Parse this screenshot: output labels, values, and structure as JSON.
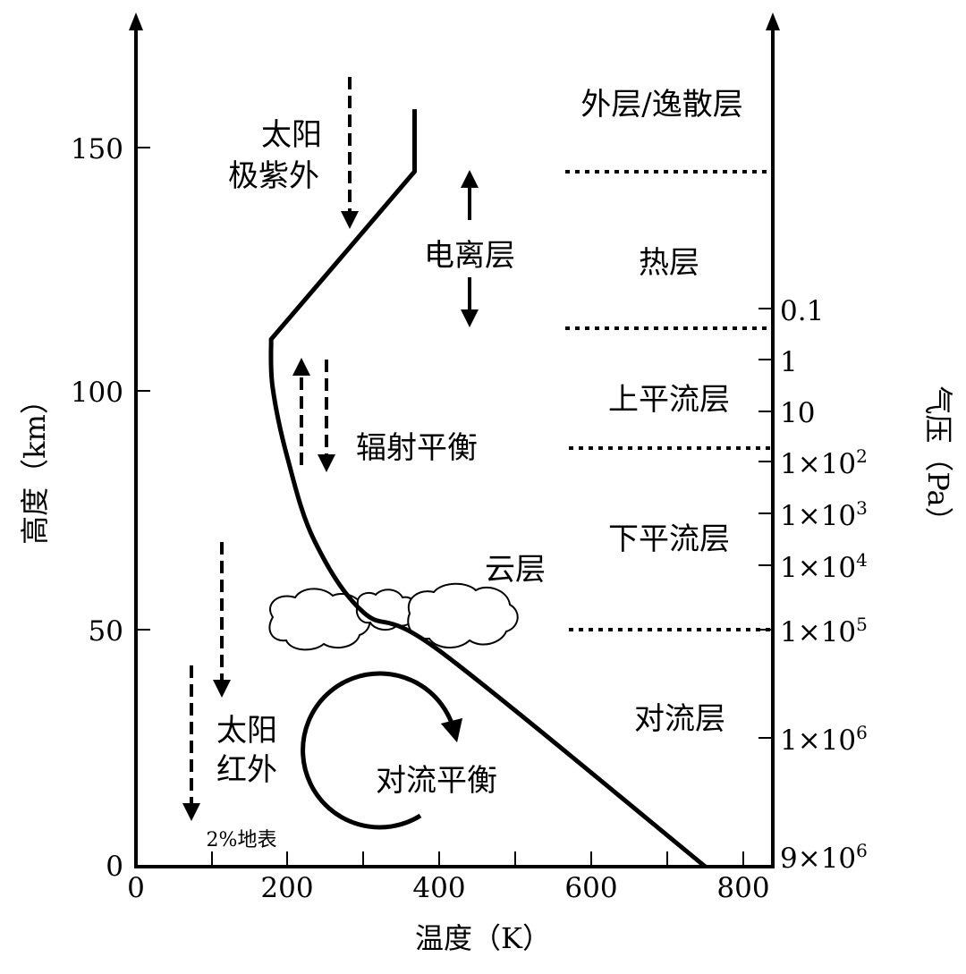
{
  "axes": {
    "x_label": "温度（K）",
    "y_left_label": "高度（km）",
    "y_right_label": "气压（Pa）",
    "x_ticks": [
      "0",
      "200",
      "400",
      "600",
      "800"
    ],
    "y_ticks": [
      "0",
      "50",
      "100",
      "150"
    ]
  },
  "pressure_ticks": [
    {
      "label": "0.1",
      "sup": ""
    },
    {
      "label": "1",
      "sup": ""
    },
    {
      "label": "10",
      "sup": ""
    },
    {
      "label": "1×10",
      "sup": "2"
    },
    {
      "label": "1×10",
      "sup": "3"
    },
    {
      "label": "1×10",
      "sup": "4"
    },
    {
      "label": "1×10",
      "sup": "5"
    },
    {
      "label": "1×10",
      "sup": "6"
    },
    {
      "label": "9×10",
      "sup": "6"
    }
  ],
  "layers": {
    "exosphere": "外层/逸散层",
    "thermosphere": "热层",
    "upper_stratosphere": "上平流层",
    "lower_stratosphere": "下平流层",
    "troposphere": "对流层"
  },
  "annotations": {
    "solar_euv_line1": "太阳",
    "solar_euv_line2": "极紫外",
    "ionosphere": "电离层",
    "radiative_balance": "辐射平衡",
    "cloud_layer": "云层",
    "solar_ir_line1": "太阳",
    "solar_ir_line2": "红外",
    "surface_fraction": "2%地表",
    "convective_balance": "对流平衡"
  },
  "profile": {
    "points_K_km": [
      [
        750,
        0
      ],
      [
        400,
        45
      ],
      [
        300,
        53
      ],
      [
        235,
        68
      ],
      [
        200,
        85
      ],
      [
        180,
        100
      ],
      [
        178,
        110
      ],
      [
        367,
        145
      ],
      [
        367,
        158
      ]
    ]
  },
  "colors": {
    "ink": "#000000",
    "background": "#ffffff"
  }
}
